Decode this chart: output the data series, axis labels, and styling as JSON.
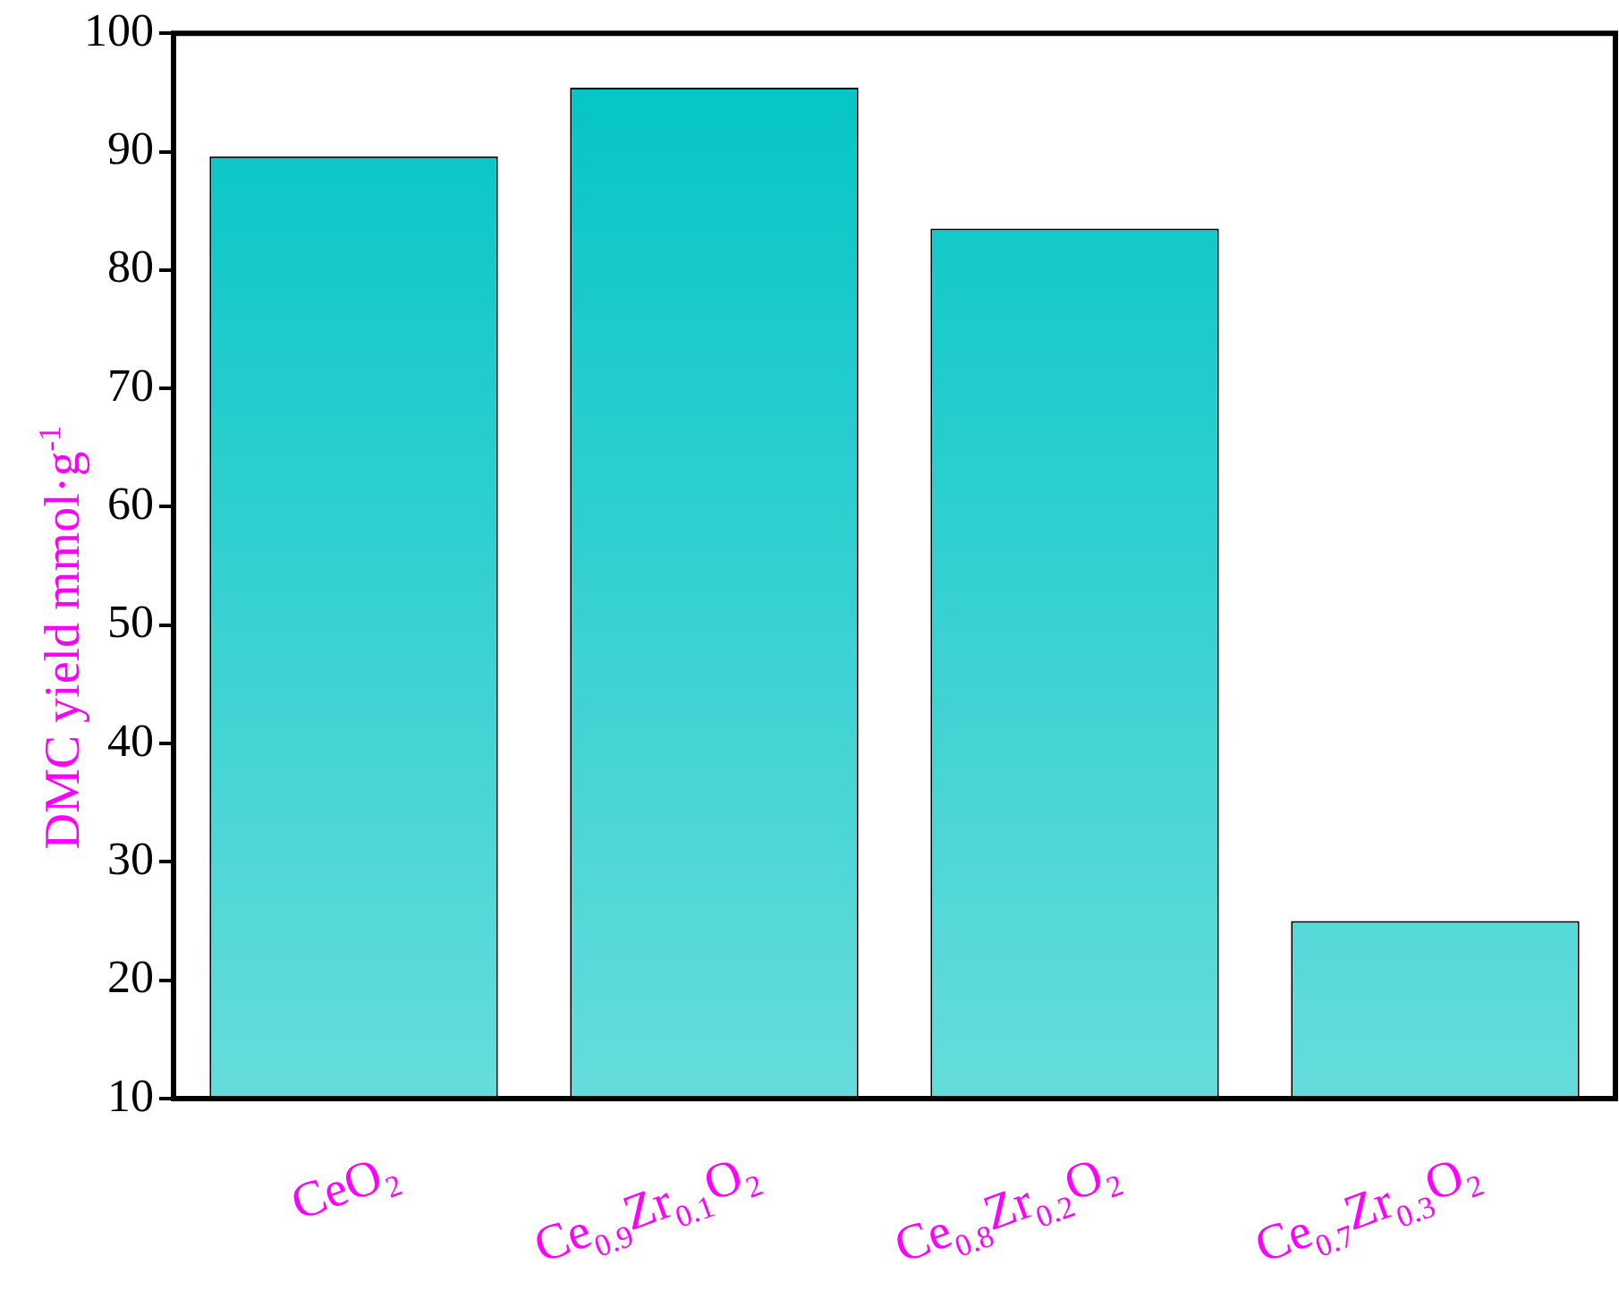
{
  "chart_data": {
    "type": "bar",
    "ylabel": "DMC yield mmol·g$^{-1}$",
    "categories": [
      "CeO₂",
      "Ce$_{0.9}$Zr$_{0.1}$O₂",
      "Ce$_{0.8}$Zr$_{0.2}$O₂",
      "Ce$_{0.7}$Zr$_{0.3}$O₂"
    ],
    "values": [
      89.6,
      95.4,
      83.5,
      25
    ],
    "color": "#00c4c4",
    "ylim": [
      10,
      100
    ],
    "yticks": [
      10,
      20,
      30,
      40,
      50,
      60,
      70,
      80,
      90,
      100
    ],
    "grid": false,
    "legend": false
  }
}
